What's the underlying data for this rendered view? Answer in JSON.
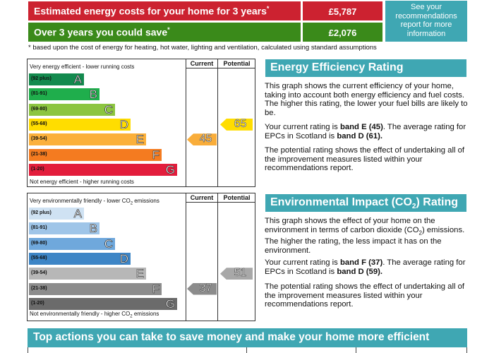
{
  "costs": {
    "estimated_label": "Estimated energy costs for your home for 3 years",
    "estimated_value": "£5,787",
    "save_label": "Over 3 years you could save",
    "save_value": "£2,076",
    "recommendations_link": "See your recommendations report for more information",
    "asterisk": "*",
    "footnote": "* based upon the cost of energy for heating, hot water, lighting and ventilation, calculated using standard assumptions"
  },
  "eer_chart": {
    "col_current": "Current",
    "col_potential": "Potential",
    "top_text": "Very energy efficient - lower running costs",
    "bottom_text": "Not energy efficient - higher running costs",
    "bands": [
      {
        "range": "(92 plus)",
        "letter": "A",
        "color": "#138a4e"
      },
      {
        "range": "(81-91)",
        "letter": "B",
        "color": "#1fae4c"
      },
      {
        "range": "(69-80)",
        "letter": "C",
        "color": "#8cc540"
      },
      {
        "range": "(55-68)",
        "letter": "D",
        "color": "#ffdd00"
      },
      {
        "range": "(39-54)",
        "letter": "E",
        "color": "#fbb03b"
      },
      {
        "range": "(21-38)",
        "letter": "F",
        "color": "#f47b20"
      },
      {
        "range": "(1-20)",
        "letter": "G",
        "color": "#e31d3c"
      }
    ],
    "current": {
      "value": "45",
      "band": "E",
      "color": "#f9ad3a"
    },
    "potential": {
      "value": "65",
      "band": "D",
      "color": "#ffdd00"
    }
  },
  "ei_chart": {
    "col_current": "Current",
    "col_potential": "Potential",
    "top_text_pre": "Very environmentally friendly - lower CO",
    "top_text_sub": "2",
    "top_text_post": " emissions",
    "bottom_text_pre": "Not environmentally friendly - higher CO",
    "bottom_text_sub": "2",
    "bottom_text_post": " emissions",
    "bands": [
      {
        "range": "(92 plus)",
        "letter": "A",
        "color": "#cfe2f3"
      },
      {
        "range": "(81-91)",
        "letter": "B",
        "color": "#9fc5e8"
      },
      {
        "range": "(69-80)",
        "letter": "C",
        "color": "#6fa8dc"
      },
      {
        "range": "(55-68)",
        "letter": "D",
        "color": "#3d85c6"
      },
      {
        "range": "(39-54)",
        "letter": "E",
        "color": "#b7b7b7"
      },
      {
        "range": "(21-38)",
        "letter": "F",
        "color": "#8c8c8c"
      },
      {
        "range": "(1-20)",
        "letter": "G",
        "color": "#6b6b6b"
      }
    ],
    "current": {
      "value": "37",
      "band": "F",
      "color": "#8c8c8c"
    },
    "potential": {
      "value": "51",
      "band": "E",
      "color": "#a8a8a8"
    }
  },
  "eer_section": {
    "heading": "Energy Efficiency Rating",
    "p1": "This graph shows the current efficiency of your home, taking into account both energy efficiency and fuel costs. The higher this rating, the lower your fuel bills are likely to be.",
    "p2_a": "Your current rating is ",
    "p2_b": "band E (45)",
    "p2_c": ". The average rating for EPCs in Scotland is ",
    "p2_d": "band D (61).",
    "p3": "The potential rating shows the effect of undertaking all of the improvement measures listed within your recommendations report."
  },
  "ei_section": {
    "heading_pre": "Environmental Impact (CO",
    "heading_sub": "2",
    "heading_post": ") Rating",
    "p1_a": "This graph shows the effect of your home on the environment in terms of carbon dioxide (CO",
    "p1_sub": "2",
    "p1_b": ") emissions. The higher the rating, the less impact it has on the environment.",
    "p2_a": "Your current rating is ",
    "p2_b": "band F (37)",
    "p2_c": ". The average rating for EPCs in Scotland is ",
    "p2_d": "band D (59).",
    "p3": "The potential rating shows the effect of undertaking all of the improvement measures listed within your recommendations report."
  },
  "actions_banner": "Top actions you can take to save money and make your home more efficient"
}
